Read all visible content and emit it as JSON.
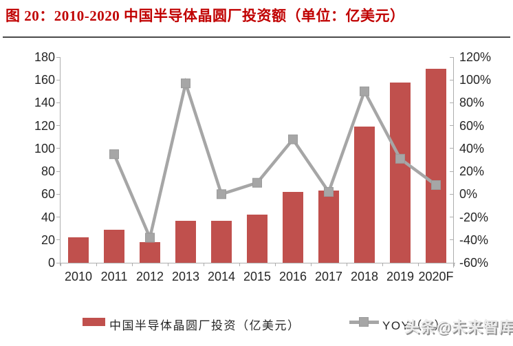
{
  "figure": {
    "title": "图 20：2010-2020 中国半导体晶圆厂投资额（单位：亿美元）",
    "watermark": "头条@未来智库"
  },
  "legend": {
    "bar_label": "中国半导体晶圆厂投资（亿美元）",
    "line_label": "YOY（%）"
  },
  "chart_data": {
    "type": "bar",
    "combo": "bar + line, dual y-axis",
    "title": "2010-2020 中国半导体晶圆厂投资额（单位：亿美元）",
    "categories": [
      "2010",
      "2011",
      "2012",
      "2013",
      "2014",
      "2015",
      "2016",
      "2017",
      "2018",
      "2019",
      "2020F"
    ],
    "series": [
      {
        "name": "中国半导体晶圆厂投资（亿美元）",
        "type": "bar",
        "axis": "left",
        "color": "#c0504d",
        "values": [
          22,
          29,
          18,
          37,
          37,
          42,
          62,
          63,
          119,
          158,
          170
        ]
      },
      {
        "name": "YOY（%）",
        "type": "line",
        "axis": "right",
        "color": "#a6a6a6",
        "marker": "square",
        "values": [
          null,
          35,
          -38,
          97,
          0,
          10,
          48,
          2,
          90,
          31,
          8
        ]
      }
    ],
    "left_axis": {
      "min": 0,
      "max": 180,
      "step": 20,
      "tick_labels": [
        "180",
        "160",
        "140",
        "120",
        "100",
        "80",
        "60",
        "40",
        "20",
        "0"
      ]
    },
    "right_axis": {
      "min": -60,
      "max": 120,
      "step": 20,
      "unit": "%",
      "tick_labels": [
        "120%",
        "100%",
        "80%",
        "60%",
        "40%",
        "20%",
        "0%",
        "-20%",
        "-40%",
        "-60%"
      ]
    },
    "grid": false,
    "legend_position": "bottom"
  },
  "colors": {
    "bar": "#c0504d",
    "line": "#a6a6a6",
    "title_text": "#c00000",
    "axis_text": "#262626",
    "axis_line": "#adadad"
  }
}
